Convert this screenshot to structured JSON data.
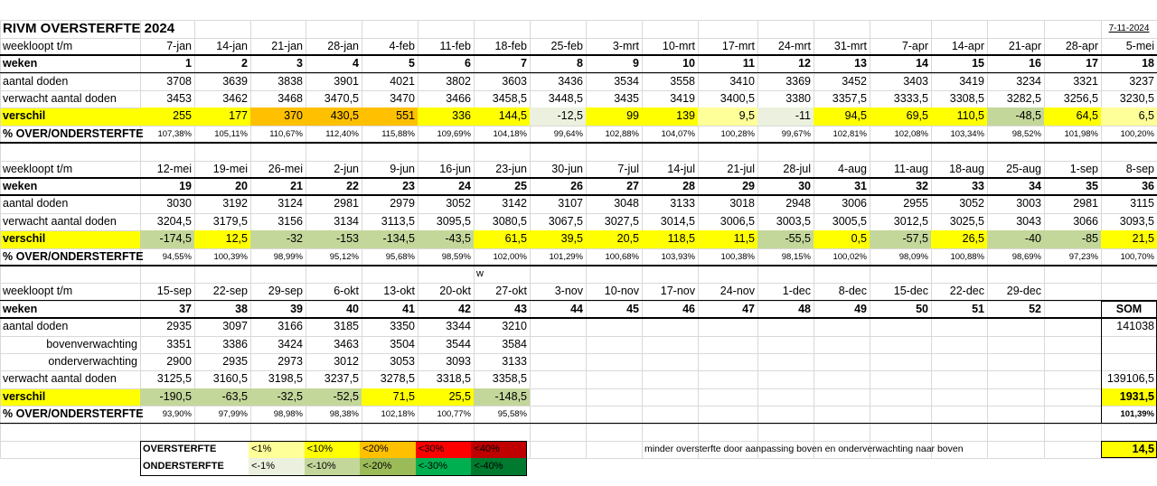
{
  "title": "RIVM OVERSTERFTE 2024",
  "date": "7-11-2024",
  "labels": {
    "weekloopt": "weekloopt t/m",
    "weken": "weken",
    "aantal": "aantal doden",
    "boven": "bovenverwachting",
    "onder": "onderverwachting",
    "verwacht": "verwacht aantal doden",
    "verschil": "verschil",
    "pct": "% OVER/ONDERSTERFTE",
    "som": "SOM"
  },
  "colors": {
    "lt1": "#ffff99",
    "lt10": "#ffff00",
    "lt20": "#ffc000",
    "lt30": "#ff0000",
    "lt40": "#c00000",
    "n1": "#ebf1de",
    "n10": "#c4d79b",
    "n20": "#9bbb59",
    "n30": "#00b050",
    "n40": "#007a2f"
  },
  "blocks": [
    {
      "dates": [
        "7-jan",
        "14-jan",
        "21-jan",
        "28-jan",
        "4-feb",
        "11-feb",
        "18-feb",
        "25-feb",
        "3-mrt",
        "10-mrt",
        "17-mrt",
        "24-mrt",
        "31-mrt",
        "7-apr",
        "14-apr",
        "21-apr",
        "28-apr",
        "5-mei"
      ],
      "weeks": [
        "1",
        "2",
        "3",
        "4",
        "5",
        "6",
        "7",
        "8",
        "9",
        "10",
        "11",
        "12",
        "13",
        "14",
        "15",
        "16",
        "17",
        "18"
      ],
      "aantal": [
        "3708",
        "3639",
        "3838",
        "3901",
        "4021",
        "3802",
        "3603",
        "3436",
        "3534",
        "3558",
        "3410",
        "3369",
        "3452",
        "3403",
        "3419",
        "3234",
        "3321",
        "3237"
      ],
      "verwacht": [
        "3453",
        "3462",
        "3468",
        "3470,5",
        "3470",
        "3466",
        "3458,5",
        "3448,5",
        "3435",
        "3419",
        "3400,5",
        "3380",
        "3357,5",
        "3333,5",
        "3308,5",
        "3282,5",
        "3256,5",
        "3230,5"
      ],
      "verschil": [
        "255",
        "177",
        "370",
        "430,5",
        "551",
        "336",
        "144,5",
        "-12,5",
        "99",
        "139",
        "9,5",
        "-11",
        "94,5",
        "69,5",
        "110,5",
        "-48,5",
        "64,5",
        "6,5"
      ],
      "verschil_class": [
        "lt10",
        "lt10",
        "lt20",
        "lt20",
        "lt20",
        "lt10",
        "lt10",
        "n1",
        "lt10",
        "lt10",
        "lt1",
        "n1",
        "lt10",
        "lt10",
        "lt10",
        "n10",
        "lt10",
        "lt1"
      ],
      "pct": [
        "107,38%",
        "105,11%",
        "110,67%",
        "112,40%",
        "115,88%",
        "109,69%",
        "104,18%",
        "99,64%",
        "102,88%",
        "104,07%",
        "100,28%",
        "99,67%",
        "102,81%",
        "102,08%",
        "103,34%",
        "98,52%",
        "101,98%",
        "100,20%"
      ]
    },
    {
      "dates": [
        "12-mei",
        "19-mei",
        "26-mei",
        "2-jun",
        "9-jun",
        "16-jun",
        "23-jun",
        "30-jun",
        "7-jul",
        "14-jul",
        "21-jul",
        "28-jul",
        "4-aug",
        "11-aug",
        "18-aug",
        "25-aug",
        "1-sep",
        "8-sep"
      ],
      "weeks": [
        "19",
        "20",
        "21",
        "22",
        "23",
        "24",
        "25",
        "26",
        "27",
        "28",
        "29",
        "30",
        "31",
        "32",
        "33",
        "34",
        "35",
        "36"
      ],
      "aantal": [
        "3030",
        "3192",
        "3124",
        "2981",
        "2979",
        "3052",
        "3142",
        "3107",
        "3048",
        "3133",
        "3018",
        "2948",
        "3006",
        "2955",
        "3052",
        "3003",
        "2981",
        "3115"
      ],
      "verwacht": [
        "3204,5",
        "3179,5",
        "3156",
        "3134",
        "3113,5",
        "3095,5",
        "3080,5",
        "3067,5",
        "3027,5",
        "3014,5",
        "3006,5",
        "3003,5",
        "3005,5",
        "3012,5",
        "3025,5",
        "3043",
        "3066",
        "3093,5"
      ],
      "verschil": [
        "-174,5",
        "12,5",
        "-32",
        "-153",
        "-134,5",
        "-43,5",
        "61,5",
        "39,5",
        "20,5",
        "118,5",
        "11,5",
        "-55,5",
        "0,5",
        "-57,5",
        "26,5",
        "-40",
        "-85",
        "21,5"
      ],
      "verschil_class": [
        "n10",
        "lt10",
        "n10",
        "n10",
        "n10",
        "n10",
        "lt10",
        "lt10",
        "lt10",
        "lt10",
        "lt10",
        "n10",
        "lt10",
        "n10",
        "lt10",
        "n10",
        "n10",
        "lt10"
      ],
      "pct": [
        "94,55%",
        "100,39%",
        "98,99%",
        "95,12%",
        "95,68%",
        "98,59%",
        "102,00%",
        "101,29%",
        "100,68%",
        "103,93%",
        "100,38%",
        "98,15%",
        "100,02%",
        "98,09%",
        "100,88%",
        "98,69%",
        "97,23%",
        "100,70%"
      ]
    },
    {
      "dates": [
        "15-sep",
        "22-sep",
        "29-sep",
        "6-okt",
        "13-okt",
        "20-okt",
        "27-okt",
        "3-nov",
        "10-nov",
        "17-nov",
        "24-nov",
        "1-dec",
        "8-dec",
        "15-dec",
        "22-dec",
        "29-dec"
      ],
      "weeks": [
        "37",
        "38",
        "39",
        "40",
        "41",
        "42",
        "43",
        "44",
        "45",
        "46",
        "47",
        "48",
        "49",
        "50",
        "51",
        "52"
      ],
      "aantal": [
        "2935",
        "3097",
        "3166",
        "3185",
        "3350",
        "3344",
        "3210"
      ],
      "boven": [
        "3351",
        "3386",
        "3424",
        "3463",
        "3504",
        "3544",
        "3584"
      ],
      "onder": [
        "2900",
        "2935",
        "2973",
        "3012",
        "3053",
        "3093",
        "3133"
      ],
      "verwacht": [
        "3125,5",
        "3160,5",
        "3198,5",
        "3237,5",
        "3278,5",
        "3318,5",
        "3358,5"
      ],
      "verschil": [
        "-190,5",
        "-63,5",
        "-32,5",
        "-52,5",
        "71,5",
        "25,5",
        "-148,5"
      ],
      "verschil_class": [
        "n10",
        "n10",
        "n10",
        "n10",
        "lt10",
        "lt10",
        "n10"
      ],
      "pct": [
        "93,90%",
        "97,99%",
        "98,98%",
        "98,38%",
        "102,18%",
        "100,77%",
        "95,58%"
      ]
    }
  ],
  "stray": "w",
  "sum": {
    "aantal": "141038",
    "verwacht": "139106,5",
    "verschil": "1931,5",
    "pct": "101,39%"
  },
  "legend": {
    "over": {
      "label": "OVERSTERFTE",
      "items": [
        "<1%",
        "<10%",
        "<20%",
        "<30%",
        "<40%"
      ]
    },
    "onder": {
      "label": "ONDERSTERFTE",
      "items": [
        "<-1%",
        "<-10%",
        "<-20%",
        "<-30%",
        "<-40%"
      ]
    }
  },
  "note": "minder oversterfte door aanpassing boven en onderverwachting naar boven",
  "note_value": "14,5"
}
